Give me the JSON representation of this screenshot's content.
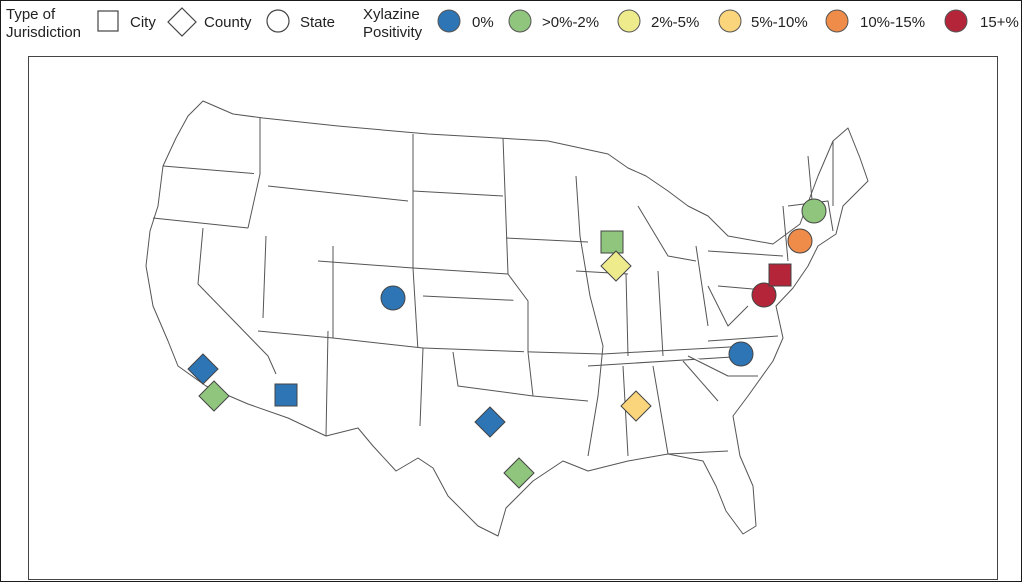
{
  "legend": {
    "jurisdiction_title_line1": "Type of",
    "jurisdiction_title_line2": "Jurisdiction",
    "city_label": "City",
    "county_label": "County",
    "state_label": "State",
    "positivity_title_line1": "Xylazine",
    "positivity_title_line2": "Positivity",
    "bins": [
      {
        "label": "0%",
        "color": "#2e75b6"
      },
      {
        "label": ">0%-2%",
        "color": "#8fc57c"
      },
      {
        "label": "2%-5%",
        "color": "#eeeb8c"
      },
      {
        "label": "5%-10%",
        "color": "#fbd57b"
      },
      {
        "label": "10%-15%",
        "color": "#f08c4a"
      },
      {
        "label": "15+%",
        "color": "#b4253a"
      }
    ]
  },
  "map": {
    "background": "#ffffff",
    "state_fill": "#ffffff",
    "state_stroke": "#555555",
    "markers": [
      {
        "type": "county",
        "bin": 0,
        "place": "Los Angeles County, CA"
      },
      {
        "type": "county",
        "bin": 1,
        "place": "San Diego County, CA"
      },
      {
        "type": "city",
        "bin": 0,
        "place": "Phoenix, AZ"
      },
      {
        "type": "state",
        "bin": 0,
        "place": "Colorado"
      },
      {
        "type": "county",
        "bin": 0,
        "place": "Dallas County, TX"
      },
      {
        "type": "county",
        "bin": 1,
        "place": "Harris County, TX"
      },
      {
        "type": "city",
        "bin": 1,
        "place": "Chicago, IL"
      },
      {
        "type": "county",
        "bin": 2,
        "place": "Cook County, IL"
      },
      {
        "type": "county",
        "bin": 3,
        "place": "Jefferson County, AL"
      },
      {
        "type": "state",
        "bin": 0,
        "place": "North Carolina"
      },
      {
        "type": "state",
        "bin": 5,
        "place": "Maryland"
      },
      {
        "type": "city",
        "bin": 5,
        "place": "Philadelphia, PA"
      },
      {
        "type": "state",
        "bin": 4,
        "place": "Connecticut"
      },
      {
        "type": "state",
        "bin": 1,
        "place": "New Hampshire"
      }
    ]
  }
}
